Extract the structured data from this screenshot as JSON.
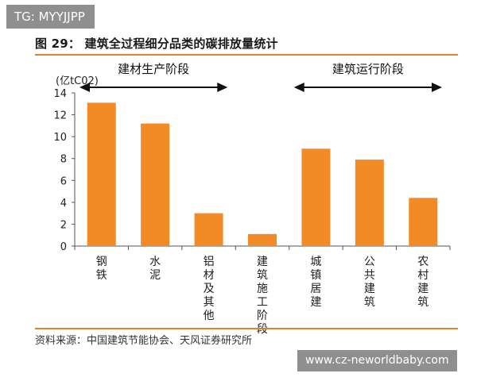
{
  "watermark_top": "TG: MYYJJPP",
  "figure_title": "图 29： 建筑全过程细分品类的碳排放量统计",
  "source_note": "资料来源：中国建筑节能协会、天风证券研究所",
  "watermark_bottom": "www.cz-neworldbaby.com",
  "colors": {
    "bar": "#f28a26",
    "rule": "#d9832c",
    "axis": "#555555"
  },
  "chart_data": {
    "type": "bar",
    "ylabel": "(亿tC02)",
    "ylim": [
      0,
      14
    ],
    "yticks": [
      0,
      2,
      4,
      6,
      8,
      10,
      12,
      14
    ],
    "grid": false,
    "categories": [
      "钢铁",
      "水泥",
      "铝材及其他",
      "建筑施工阶段",
      "城镇居建",
      "公共建筑",
      "农村建筑"
    ],
    "values": [
      13.1,
      11.2,
      3.0,
      1.1,
      8.9,
      7.9,
      4.4
    ],
    "annotations": [
      {
        "text": "建材生产阶段",
        "from_index": 0,
        "to_index": 2
      },
      {
        "text": "建筑运行阶段",
        "from_index": 4,
        "to_index": 6
      }
    ]
  }
}
